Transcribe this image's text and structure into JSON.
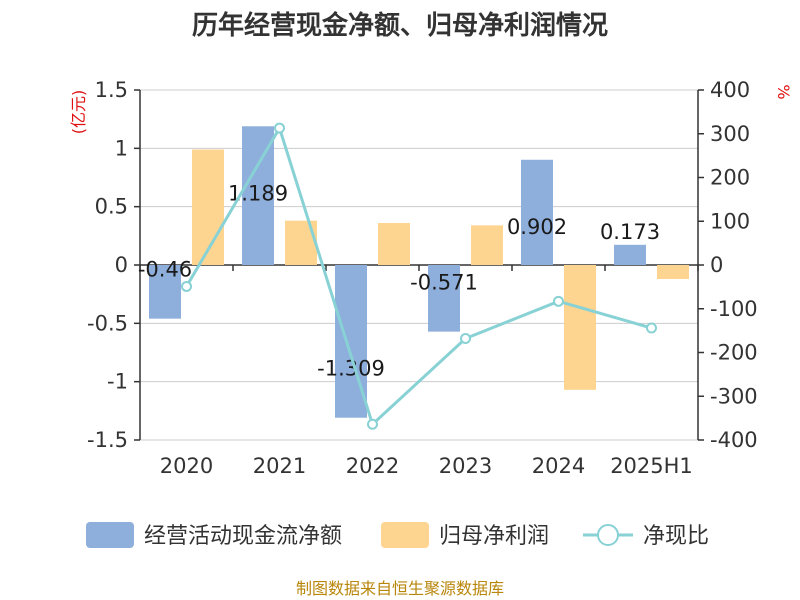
{
  "chart_data": {
    "type": "bar",
    "title": "历年经营现金净额、归母净利润情况",
    "categories": [
      "2020",
      "2021",
      "2022",
      "2023",
      "2024",
      "2025H1"
    ],
    "series": [
      {
        "name": "经营活动现金流净额",
        "kind": "bar",
        "axis": "left",
        "color": "#8eaedc",
        "values": [
          -0.46,
          1.189,
          -1.309,
          -0.571,
          0.902,
          0.173
        ],
        "labels": [
          "-0.46",
          "1.189",
          "-1.309",
          "-0.571",
          "0.902",
          "0.173"
        ]
      },
      {
        "name": "归母净利润",
        "kind": "bar",
        "axis": "left",
        "color": "#fdd591",
        "values": [
          0.99,
          0.38,
          0.36,
          0.34,
          -1.07,
          -0.12
        ]
      },
      {
        "name": "净现比",
        "kind": "line",
        "axis": "right",
        "color": "#88d1d5",
        "values": [
          -49,
          313,
          -364,
          -168,
          -83,
          -144
        ]
      }
    ],
    "left_axis": {
      "unit": "(亿元)",
      "ylim": [
        -1.5,
        1.5
      ],
      "ticks": [
        1.5,
        1,
        0.5,
        0,
        -0.5,
        -1,
        -1.5
      ],
      "tick_labels": [
        "1.5",
        "1",
        "0.5",
        "0",
        "-0.5",
        "-1",
        "-1.5"
      ]
    },
    "right_axis": {
      "unit": "%",
      "ylim": [
        -400,
        400
      ],
      "ticks": [
        400,
        300,
        200,
        100,
        0,
        -100,
        -200,
        -300,
        -400
      ],
      "tick_labels": [
        "400",
        "300",
        "200",
        "100",
        "0",
        "-100",
        "-200",
        "-300",
        "-400"
      ]
    },
    "grid": true,
    "legend_position": "bottom"
  },
  "source_text": "制图数据来自恒生聚源数据库"
}
